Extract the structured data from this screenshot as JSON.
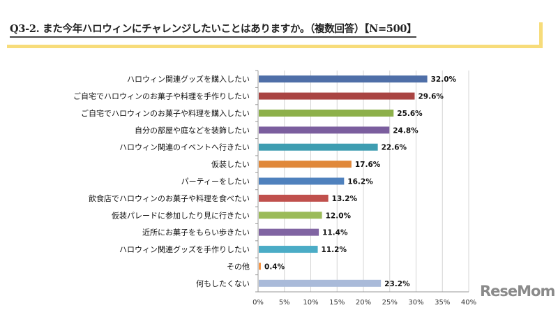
{
  "title": "Q3-2. また今年ハロウィンにチャレンジしたいことはありますか。（複数回答）【N=500】",
  "logo": "ReseMom",
  "chart_data": {
    "type": "bar",
    "orientation": "horizontal",
    "categories": [
      "ハロウィン関連グッズを購入したい",
      "ご自宅でハロウィンのお菓子や料理を手作りしたい",
      "ご自宅でハロウィンのお菓子や料理を購入したい",
      "自分の部屋や庭などを装飾したい",
      "ハロウィン関連のイベントへ行きたい",
      "仮装したい",
      "パーティーをしたい",
      "飲食店でハロウィンのお菓子や料理を食べたい",
      "仮装パレードに参加したり見に行きたい",
      "近所にお菓子をもらい歩きたい",
      "ハロウィン関連グッズを手作りしたい",
      "その他",
      "何もしたくない"
    ],
    "values": [
      32.0,
      29.6,
      25.6,
      24.8,
      22.6,
      17.6,
      16.2,
      13.2,
      12.0,
      11.4,
      11.2,
      0.4,
      23.2
    ],
    "data_labels": [
      "32.0%",
      "29.6%",
      "25.6%",
      "24.8%",
      "22.6%",
      "17.6%",
      "16.2%",
      "13.2%",
      "12.0%",
      "11.4%",
      "11.2%",
      "0.4%",
      "23.2%"
    ],
    "colors": [
      "#4F6FA8",
      "#A94442",
      "#8DB04A",
      "#7B5E9E",
      "#3E9DB1",
      "#E0883A",
      "#4F81BD",
      "#C0504D",
      "#9BBB59",
      "#8064A2",
      "#4BACC6",
      "#F79646",
      "#A9BAD9"
    ],
    "xlim": [
      0,
      40
    ],
    "xticks": [
      "0%",
      "5%",
      "10%",
      "15%",
      "20%",
      "25%",
      "30%",
      "35%",
      "40%"
    ],
    "grid": true
  }
}
